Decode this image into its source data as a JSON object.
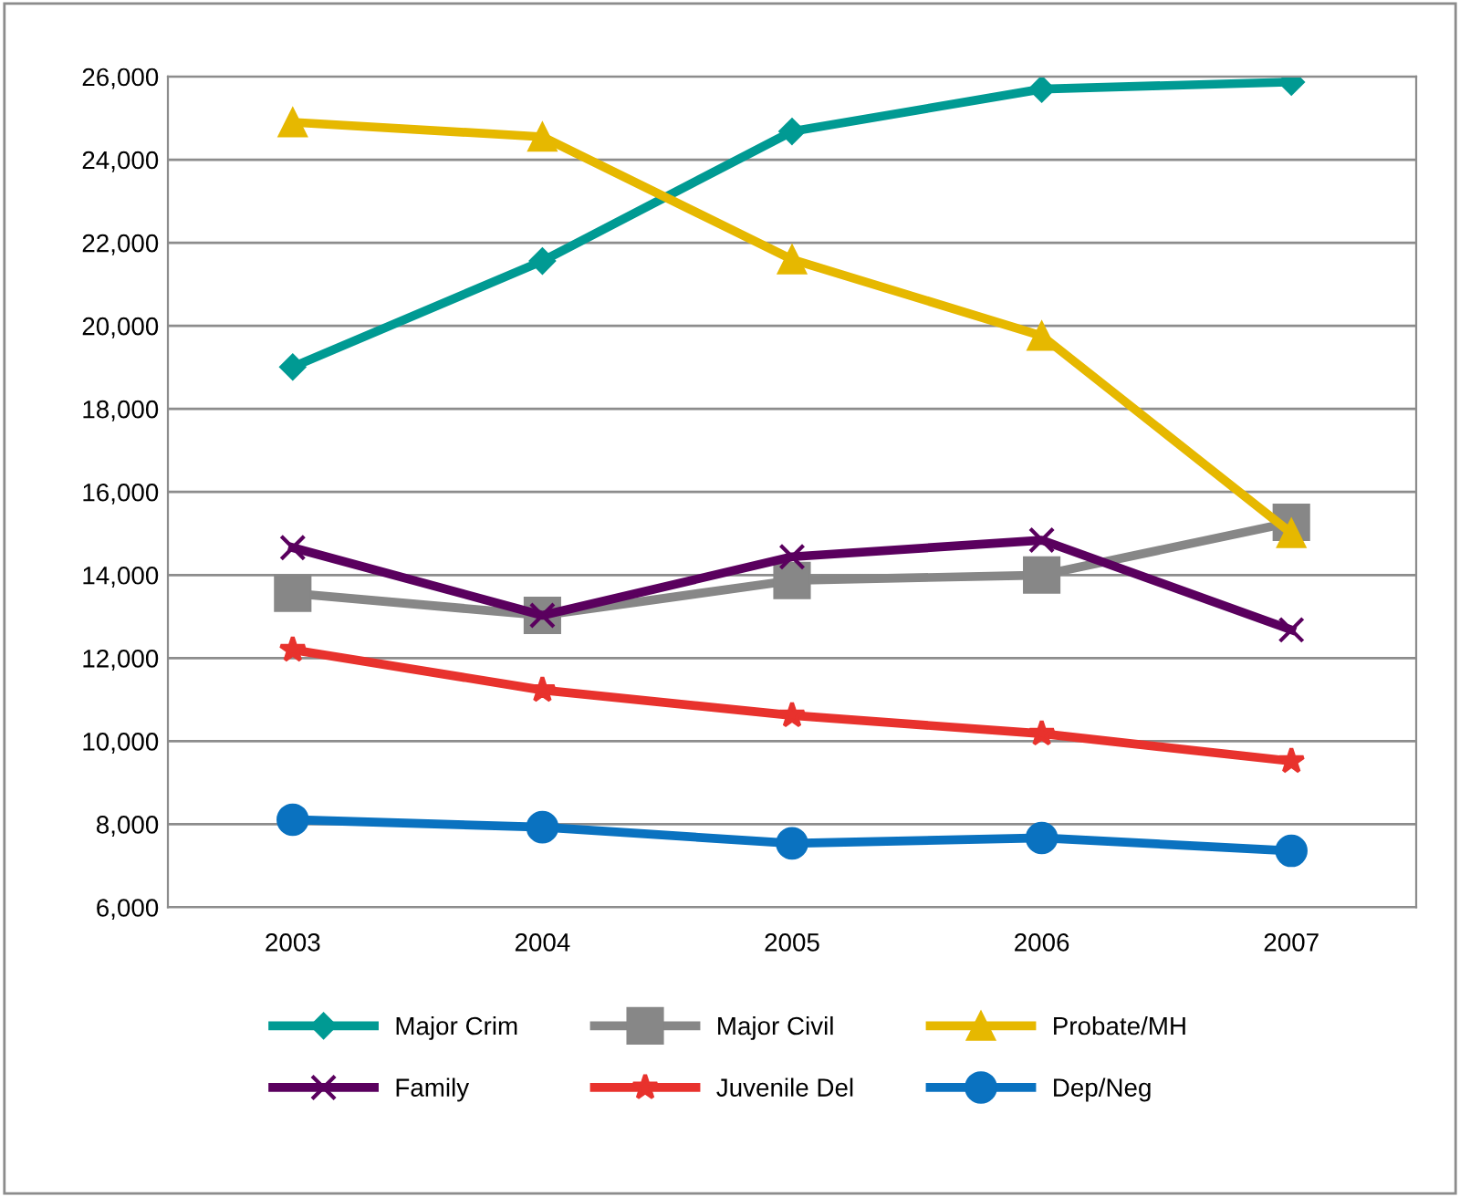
{
  "chart_data": {
    "type": "line",
    "categories": [
      "2003",
      "2004",
      "2005",
      "2006",
      "2007"
    ],
    "series": [
      {
        "name": "Major Crim",
        "color": "#009a93",
        "marker": "diamond",
        "values": [
          19010,
          21560,
          24680,
          25700,
          25870
        ]
      },
      {
        "name": "Major Civil",
        "color": "#878787",
        "marker": "square",
        "values": [
          13560,
          13030,
          13870,
          14000,
          15270
        ]
      },
      {
        "name": "Probate/MH",
        "color": "#e6b800",
        "marker": "triangle",
        "values": [
          24900,
          24550,
          21600,
          19760,
          15010
        ]
      },
      {
        "name": "Family",
        "color": "#5a005e",
        "marker": "cross",
        "values": [
          14660,
          13030,
          14440,
          14840,
          12680
        ]
      },
      {
        "name": "Juvenile Del",
        "color": "#e8322d",
        "marker": "star",
        "values": [
          12200,
          11230,
          10620,
          10180,
          9520
        ]
      },
      {
        "name": "Dep/Neg",
        "color": "#0a72c0",
        "marker": "circle",
        "values": [
          8110,
          7930,
          7540,
          7670,
          7360
        ]
      }
    ],
    "ylim": [
      6000,
      26000
    ],
    "yticks": [
      {
        "value": 6000,
        "label": "6,000"
      },
      {
        "value": 8000,
        "label": "8,000"
      },
      {
        "value": 10000,
        "label": "10,000"
      },
      {
        "value": 12000,
        "label": "12,000"
      },
      {
        "value": 14000,
        "label": "14,000"
      },
      {
        "value": 16000,
        "label": "16,000"
      },
      {
        "value": 18000,
        "label": "18,000"
      },
      {
        "value": 20000,
        "label": "20,000"
      },
      {
        "value": 22000,
        "label": "22,000"
      },
      {
        "value": 24000,
        "label": "24,000"
      },
      {
        "value": 26000,
        "label": "26,000"
      }
    ],
    "grid": "y",
    "legend": "bottom",
    "line_style": "solid"
  }
}
